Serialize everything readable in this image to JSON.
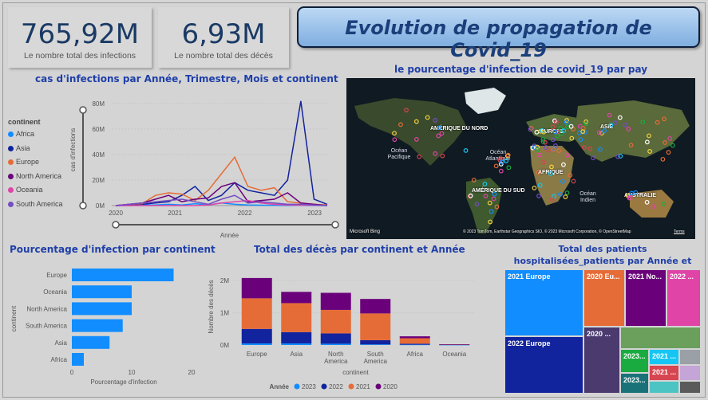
{
  "kpis": [
    {
      "value": "765,92M",
      "label": "Le nombre total des infections"
    },
    {
      "value": "6,93M",
      "label": "Le nombre total des décès"
    }
  ],
  "title": "Evolution de propagation de Covid_19",
  "line_chart": {
    "title": "cas d'infections par Année, Trimestre, Mois et continent",
    "legend_title": "continent",
    "ylabel": "cas d'infections",
    "xlabel": "Année",
    "yticks": [
      "80M",
      "60M",
      "40M",
      "20M",
      "0M"
    ],
    "xticks": [
      "2020",
      "2021",
      "2022",
      "2023"
    ]
  },
  "map": {
    "title": "le pourcentage d'infection de covid_19 par pay",
    "labels": {
      "na": "AMÉRIQUE DU NORD",
      "eu": "EUROPE",
      "asia": "ASIE",
      "af": "AFRIQUE",
      "sa": "AMÉRIQUE DU SUD",
      "au": "AUSTRALIE"
    },
    "oceans": {
      "pac": "Océan Pacifique",
      "atl": "Océan Atlantique",
      "ind": "Océan Indien"
    },
    "bing": "Microsoft Bing",
    "copyright": "© 2023 TomTom, Earthstar Geographics SIO, © 2023 Microsoft Corporation, © OpenStreetMap",
    "terms": "Terms"
  },
  "bar_chart": {
    "title": "Pourcentage d'infection par continent",
    "xlabel": "Pourcentage d'infection",
    "ylabel": "continent",
    "xticks": [
      "0",
      "10",
      "20"
    ]
  },
  "stacked_chart": {
    "title": "Total des décès par continent et Année",
    "ylabel": "Nombre des décès",
    "xlabel": "continent",
    "yticks": [
      "2M",
      "1M",
      "0M"
    ],
    "legend_title": "Année"
  },
  "treemap": {
    "title": "Total des patients hospitalisées_patients par Année et continent",
    "cells": [
      {
        "label": "2021 Europe",
        "color": "#118dff"
      },
      {
        "label": "2022 Europe",
        "color": "#12239e"
      },
      {
        "label": "2020 Eu...",
        "color": "#e66c37"
      },
      {
        "label": "2021 No...",
        "color": "#6b007b"
      },
      {
        "label": "2022 ...",
        "color": "#e044a7"
      },
      {
        "label": "2020 ...",
        "color": "#4a3a6e"
      },
      {
        "label": "2023...",
        "color": "#1aab40"
      },
      {
        "label": "2021 ...",
        "color": "#15c6f4"
      },
      {
        "label": "2021 ...",
        "color": "#d64550"
      },
      {
        "label": "2023...",
        "color": "#197278"
      }
    ]
  },
  "chart_data": [
    {
      "type": "line",
      "title": "cas d'infections par Année, Trimestre, Mois et continent",
      "xlabel": "Année",
      "ylabel": "cas d'infections",
      "ylim": [
        0,
        85
      ],
      "x": [
        "2020-01",
        "2020-04",
        "2020-07",
        "2020-10",
        "2021-01",
        "2021-04",
        "2021-07",
        "2021-10",
        "2022-01",
        "2022-02",
        "2022-04",
        "2022-07",
        "2022-10",
        "2022-12",
        "2023-01",
        "2023-03",
        "2023-06"
      ],
      "series": [
        {
          "name": "Africa",
          "color": "#118dff",
          "values": [
            0,
            0,
            0.5,
            0.5,
            1,
            0.5,
            1.5,
            0.5,
            2,
            1,
            0.5,
            0.3,
            0.2,
            0.1,
            0.2,
            0.1,
            0
          ]
        },
        {
          "name": "Asia",
          "color": "#12239e",
          "values": [
            0,
            0.5,
            1,
            2,
            3,
            8,
            15,
            4,
            8,
            18,
            12,
            10,
            8,
            20,
            82,
            5,
            1
          ]
        },
        {
          "name": "Europe",
          "color": "#e66c37",
          "values": [
            0,
            1,
            1.5,
            8,
            10,
            9,
            4,
            12,
            25,
            38,
            15,
            12,
            14,
            3,
            2,
            1,
            0.5
          ]
        },
        {
          "name": "North America",
          "color": "#6b007b",
          "values": [
            0,
            1,
            2,
            5,
            8,
            3,
            5,
            6,
            15,
            18,
            3,
            4,
            5,
            10,
            2,
            1,
            0
          ]
        },
        {
          "name": "Oceania",
          "color": "#e044a7",
          "values": [
            0,
            0,
            0,
            0,
            0,
            0,
            0,
            0.5,
            2,
            3,
            4,
            2,
            1,
            0.5,
            0.3,
            0.2,
            0
          ]
        },
        {
          "name": "South America",
          "color": "#744ec2",
          "values": [
            0,
            1,
            2,
            3,
            4,
            5,
            3,
            1,
            5,
            8,
            2,
            3,
            2,
            1,
            1,
            0.5,
            0
          ]
        }
      ]
    },
    {
      "type": "bar",
      "title": "Pourcentage d'infection par continent",
      "xlabel": "Pourcentage d'infection",
      "ylabel": "continent",
      "categories": [
        "Europe",
        "Oceania",
        "North America",
        "South America",
        "Asia",
        "Africa"
      ],
      "values": [
        17,
        10,
        10,
        8.5,
        6.3,
        2
      ],
      "xlim": [
        0,
        20
      ]
    },
    {
      "type": "bar",
      "title": "Total des décès par continent et Année",
      "xlabel": "continent",
      "ylabel": "Nombre des décès",
      "categories": [
        "Europe",
        "Asia",
        "North America",
        "South America",
        "Africa",
        "Oceania"
      ],
      "ylim": [
        0,
        2.3
      ],
      "series": [
        {
          "name": "2023",
          "color": "#118dff",
          "values": [
            0.05,
            0.05,
            0.04,
            0.02,
            0.01,
            0.005
          ]
        },
        {
          "name": "2022",
          "color": "#12239e",
          "values": [
            0.45,
            0.35,
            0.32,
            0.13,
            0.03,
            0.01
          ]
        },
        {
          "name": "2021",
          "color": "#e66c37",
          "values": [
            0.95,
            0.9,
            0.73,
            0.83,
            0.17,
            0.005
          ]
        },
        {
          "name": "2020",
          "color": "#6b007b",
          "values": [
            0.63,
            0.35,
            0.53,
            0.45,
            0.06,
            0.002
          ]
        }
      ]
    }
  ]
}
